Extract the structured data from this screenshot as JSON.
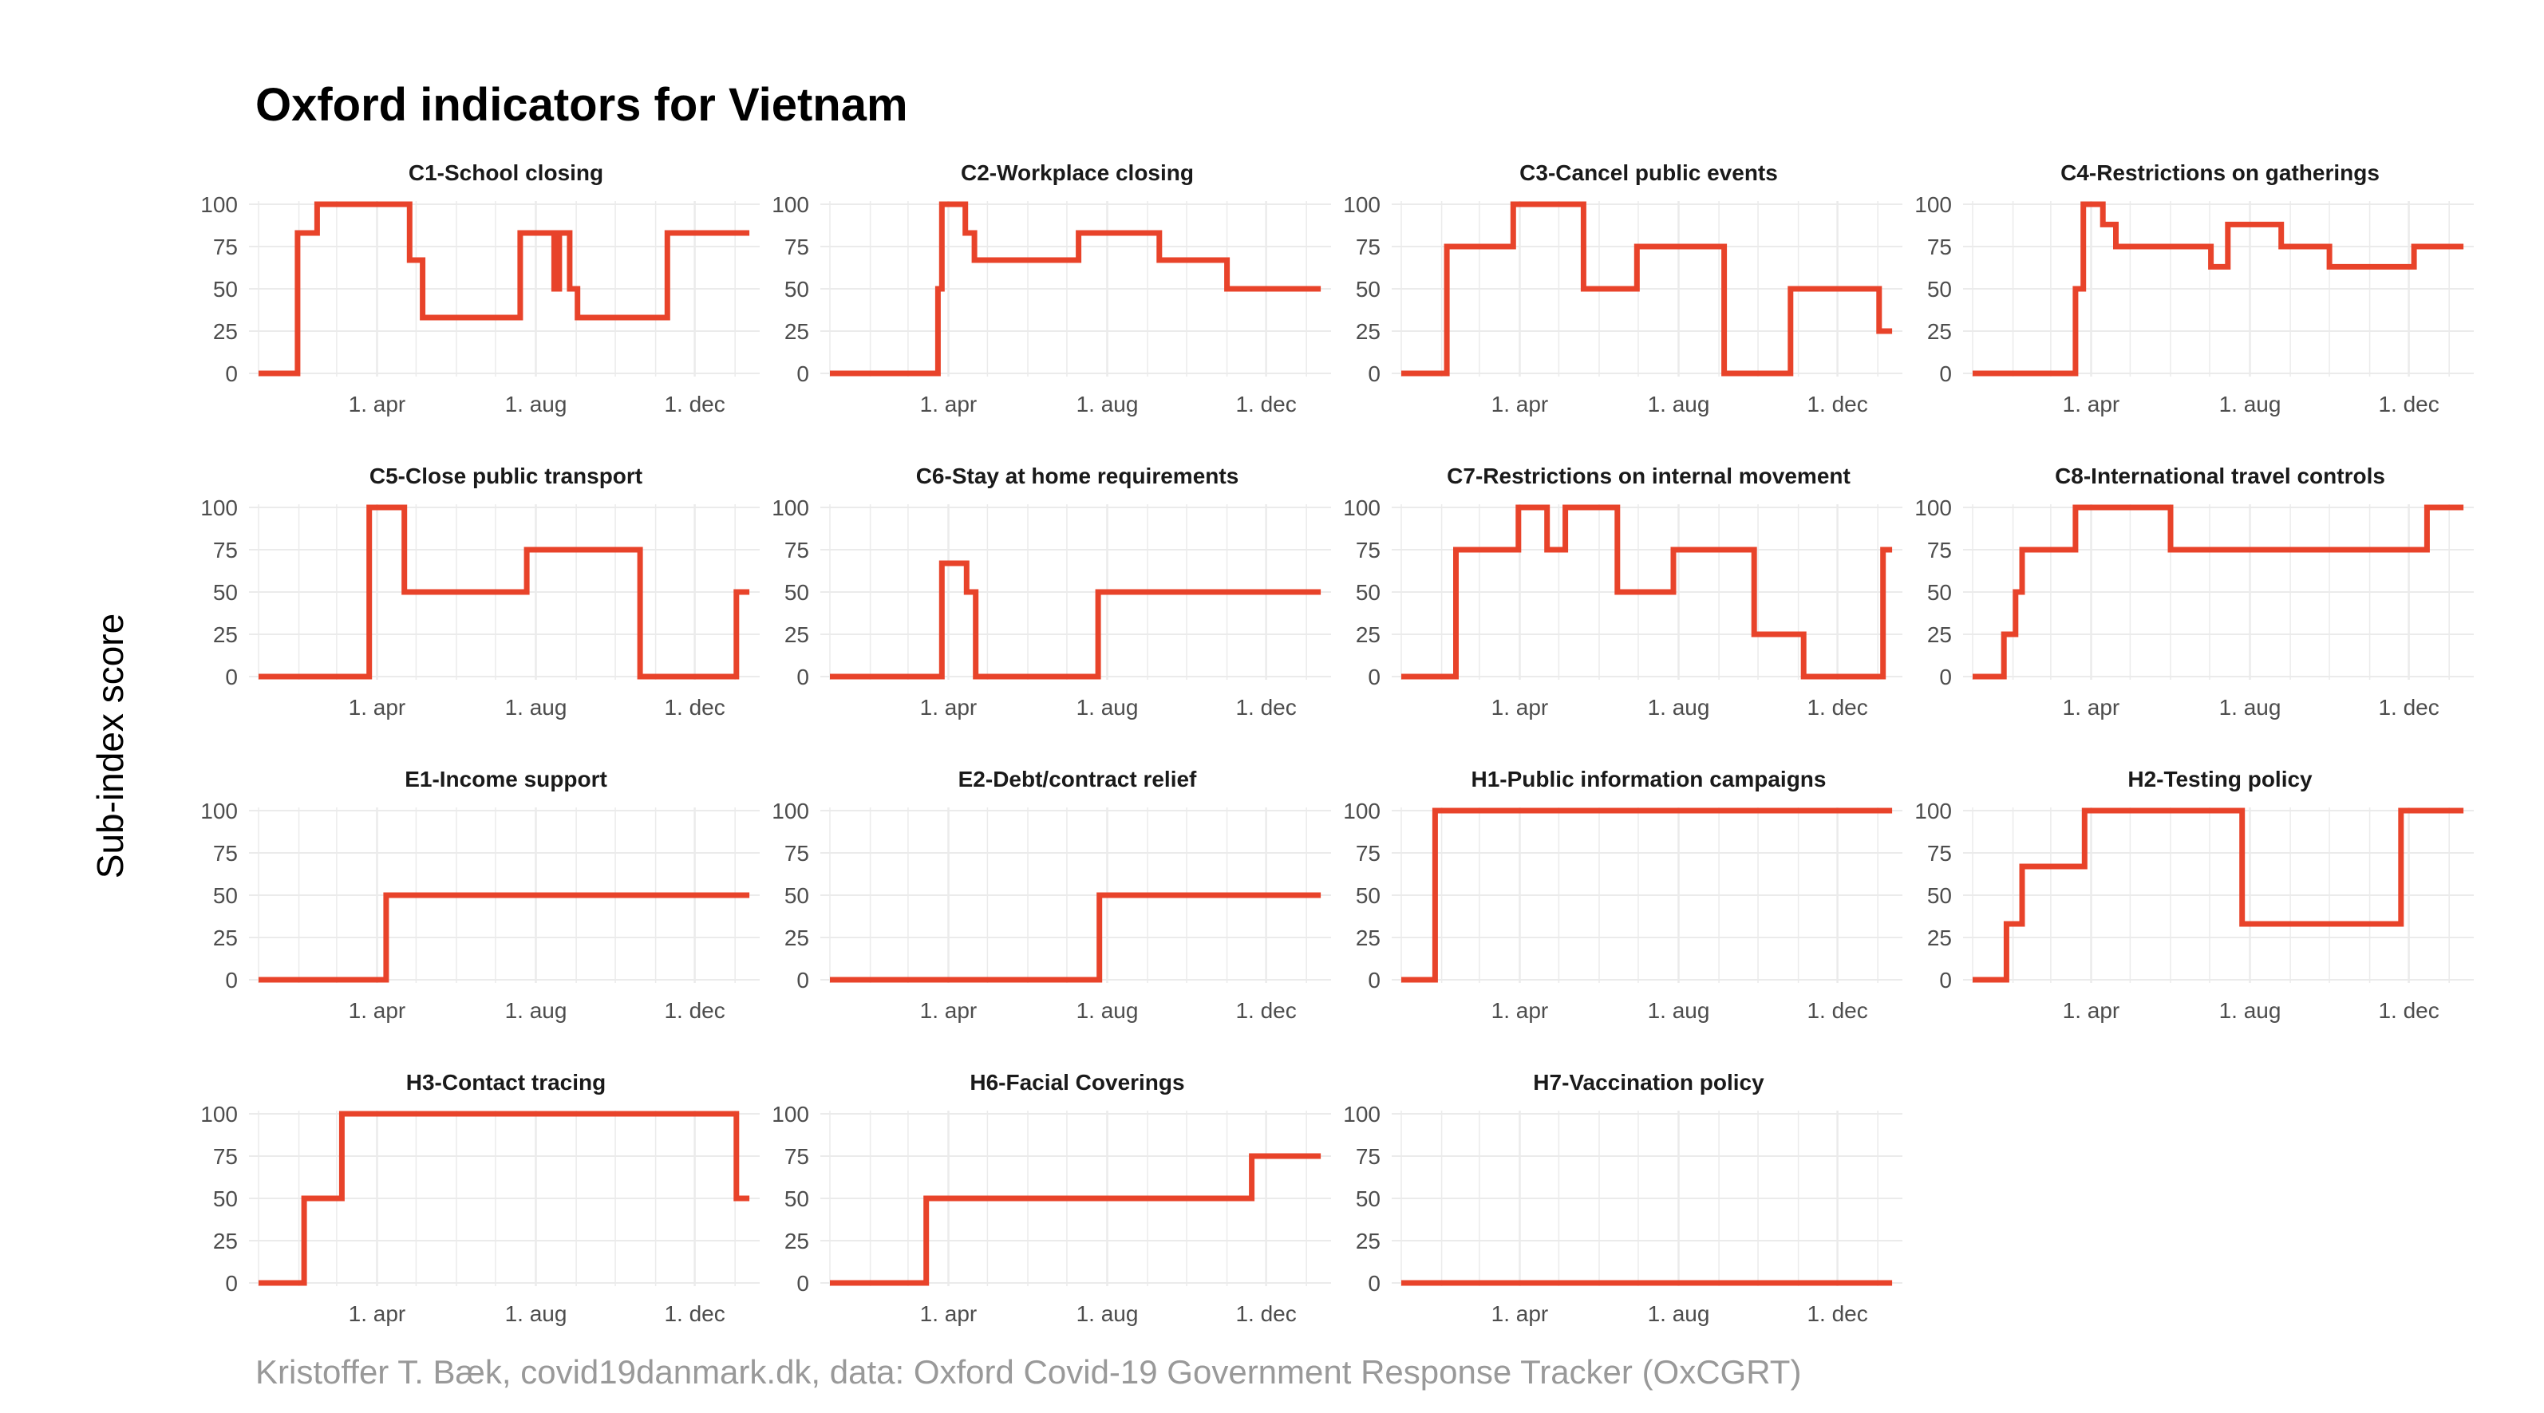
{
  "title": "Oxford indicators for Vietnam",
  "ylabel": "Sub-index score",
  "caption": "Kristoffer T. Bæk, covid19danmark.dk, data: Oxford Covid-19 Government Response Tracker (OxCGRT)",
  "colors": {
    "line": "#e8432a",
    "grid": "#ebebeb",
    "tick_text": "#4d4d4d"
  },
  "chart_data": {
    "type": "line",
    "layout": "facet-grid 4 columns",
    "x_axis": {
      "type": "date",
      "range": [
        "2020-01-01",
        "2021-01-15"
      ],
      "ticks": [
        {
          "date": "2020-04-01",
          "label": "1. apr"
        },
        {
          "date": "2020-08-01",
          "label": "1. aug"
        },
        {
          "date": "2020-12-01",
          "label": "1. dec"
        }
      ]
    },
    "y_axis": {
      "range": [
        0,
        100
      ],
      "ticks": [
        0,
        25,
        50,
        75,
        100
      ]
    },
    "panels": [
      {
        "title": "C1-School closing",
        "points": [
          [
            "2020-01-01",
            0
          ],
          [
            "2020-01-31",
            0
          ],
          [
            "2020-01-31",
            83
          ],
          [
            "2020-02-15",
            83
          ],
          [
            "2020-02-15",
            100
          ],
          [
            "2020-04-26",
            100
          ],
          [
            "2020-04-26",
            67
          ],
          [
            "2020-05-06",
            67
          ],
          [
            "2020-05-06",
            33
          ],
          [
            "2020-07-20",
            33
          ],
          [
            "2020-07-20",
            83
          ],
          [
            "2020-08-15",
            83
          ],
          [
            "2020-08-15",
            50
          ],
          [
            "2020-08-19",
            50
          ],
          [
            "2020-08-19",
            83
          ],
          [
            "2020-08-27",
            83
          ],
          [
            "2020-08-27",
            50
          ],
          [
            "2020-09-02",
            50
          ],
          [
            "2020-09-02",
            33
          ],
          [
            "2020-11-10",
            33
          ],
          [
            "2020-11-10",
            83
          ],
          [
            "2021-01-12",
            83
          ]
        ]
      },
      {
        "title": "C2-Workplace closing",
        "points": [
          [
            "2020-01-01",
            0
          ],
          [
            "2020-03-24",
            0
          ],
          [
            "2020-03-24",
            50
          ],
          [
            "2020-03-27",
            50
          ],
          [
            "2020-03-27",
            100
          ],
          [
            "2020-04-14",
            100
          ],
          [
            "2020-04-14",
            83
          ],
          [
            "2020-04-21",
            83
          ],
          [
            "2020-04-21",
            67
          ],
          [
            "2020-07-10",
            67
          ],
          [
            "2020-07-10",
            83
          ],
          [
            "2020-09-10",
            83
          ],
          [
            "2020-09-10",
            67
          ],
          [
            "2020-11-01",
            67
          ],
          [
            "2020-11-01",
            50
          ],
          [
            "2021-01-12",
            50
          ]
        ]
      },
      {
        "title": "C3-Cancel public events",
        "points": [
          [
            "2020-01-01",
            0
          ],
          [
            "2020-02-05",
            0
          ],
          [
            "2020-02-05",
            75
          ],
          [
            "2020-03-27",
            75
          ],
          [
            "2020-03-27",
            100
          ],
          [
            "2020-05-20",
            100
          ],
          [
            "2020-05-20",
            50
          ],
          [
            "2020-06-30",
            50
          ],
          [
            "2020-06-30",
            75
          ],
          [
            "2020-09-05",
            75
          ],
          [
            "2020-09-05",
            0
          ],
          [
            "2020-10-26",
            0
          ],
          [
            "2020-10-26",
            50
          ],
          [
            "2021-01-02",
            50
          ],
          [
            "2021-01-02",
            25
          ],
          [
            "2021-01-12",
            25
          ]
        ]
      },
      {
        "title": "C4-Restrictions on gatherings",
        "points": [
          [
            "2020-01-01",
            0
          ],
          [
            "2020-03-20",
            0
          ],
          [
            "2020-03-20",
            50
          ],
          [
            "2020-03-26",
            50
          ],
          [
            "2020-03-26",
            100
          ],
          [
            "2020-04-10",
            100
          ],
          [
            "2020-04-10",
            88
          ],
          [
            "2020-04-20",
            88
          ],
          [
            "2020-04-20",
            75
          ],
          [
            "2020-07-02",
            75
          ],
          [
            "2020-07-02",
            63
          ],
          [
            "2020-07-15",
            63
          ],
          [
            "2020-07-15",
            88
          ],
          [
            "2020-08-25",
            88
          ],
          [
            "2020-08-25",
            75
          ],
          [
            "2020-10-01",
            75
          ],
          [
            "2020-10-01",
            63
          ],
          [
            "2020-12-05",
            63
          ],
          [
            "2020-12-05",
            75
          ],
          [
            "2021-01-12",
            75
          ]
        ]
      },
      {
        "title": "C5-Close public transport",
        "points": [
          [
            "2020-01-01",
            0
          ],
          [
            "2020-03-26",
            0
          ],
          [
            "2020-03-26",
            100
          ],
          [
            "2020-04-22",
            100
          ],
          [
            "2020-04-22",
            50
          ],
          [
            "2020-07-25",
            50
          ],
          [
            "2020-07-25",
            75
          ],
          [
            "2020-10-20",
            75
          ],
          [
            "2020-10-20",
            0
          ],
          [
            "2021-01-02",
            0
          ],
          [
            "2021-01-02",
            50
          ],
          [
            "2021-01-12",
            50
          ]
        ]
      },
      {
        "title": "C6-Stay at home requirements",
        "points": [
          [
            "2020-01-01",
            0
          ],
          [
            "2020-03-27",
            0
          ],
          [
            "2020-03-27",
            67
          ],
          [
            "2020-04-15",
            67
          ],
          [
            "2020-04-15",
            50
          ],
          [
            "2020-04-22",
            50
          ],
          [
            "2020-04-22",
            0
          ],
          [
            "2020-07-25",
            0
          ],
          [
            "2020-07-25",
            50
          ],
          [
            "2021-01-12",
            50
          ]
        ]
      },
      {
        "title": "C7-Restrictions on internal movement",
        "points": [
          [
            "2020-01-01",
            0
          ],
          [
            "2020-02-12",
            0
          ],
          [
            "2020-02-12",
            75
          ],
          [
            "2020-03-31",
            75
          ],
          [
            "2020-03-31",
            100
          ],
          [
            "2020-04-22",
            100
          ],
          [
            "2020-04-22",
            75
          ],
          [
            "2020-05-06",
            75
          ],
          [
            "2020-05-06",
            100
          ],
          [
            "2020-06-15",
            100
          ],
          [
            "2020-06-15",
            50
          ],
          [
            "2020-07-28",
            50
          ],
          [
            "2020-07-28",
            75
          ],
          [
            "2020-09-28",
            75
          ],
          [
            "2020-09-28",
            25
          ],
          [
            "2020-11-05",
            25
          ],
          [
            "2020-11-05",
            0
          ],
          [
            "2021-01-05",
            0
          ],
          [
            "2021-01-05",
            75
          ],
          [
            "2021-01-12",
            75
          ]
        ]
      },
      {
        "title": "C8-International travel controls",
        "points": [
          [
            "2020-01-01",
            0
          ],
          [
            "2020-01-25",
            0
          ],
          [
            "2020-01-25",
            25
          ],
          [
            "2020-02-03",
            25
          ],
          [
            "2020-02-03",
            50
          ],
          [
            "2020-02-08",
            50
          ],
          [
            "2020-02-08",
            75
          ],
          [
            "2020-03-20",
            75
          ],
          [
            "2020-03-20",
            100
          ],
          [
            "2020-06-01",
            100
          ],
          [
            "2020-06-01",
            75
          ],
          [
            "2020-12-15",
            75
          ],
          [
            "2020-12-15",
            100
          ],
          [
            "2021-01-12",
            100
          ]
        ]
      },
      {
        "title": "E1-Income support",
        "points": [
          [
            "2020-01-01",
            0
          ],
          [
            "2020-04-08",
            0
          ],
          [
            "2020-04-08",
            50
          ],
          [
            "2021-01-12",
            50
          ]
        ]
      },
      {
        "title": "E2-Debt/contract relief",
        "points": [
          [
            "2020-01-01",
            0
          ],
          [
            "2020-07-26",
            0
          ],
          [
            "2020-07-26",
            50
          ],
          [
            "2021-01-12",
            50
          ]
        ]
      },
      {
        "title": "H1-Public information campaigns",
        "points": [
          [
            "2020-01-01",
            0
          ],
          [
            "2020-01-27",
            0
          ],
          [
            "2020-01-27",
            100
          ],
          [
            "2021-01-12",
            100
          ]
        ]
      },
      {
        "title": "H2-Testing policy",
        "points": [
          [
            "2020-01-01",
            0
          ],
          [
            "2020-01-27",
            0
          ],
          [
            "2020-01-27",
            33
          ],
          [
            "2020-02-08",
            33
          ],
          [
            "2020-02-08",
            67
          ],
          [
            "2020-03-27",
            67
          ],
          [
            "2020-03-27",
            100
          ],
          [
            "2020-07-26",
            100
          ],
          [
            "2020-07-26",
            33
          ],
          [
            "2020-11-25",
            33
          ],
          [
            "2020-11-25",
            100
          ],
          [
            "2021-01-12",
            100
          ]
        ]
      },
      {
        "title": "H3-Contact tracing",
        "points": [
          [
            "2020-01-01",
            0
          ],
          [
            "2020-02-05",
            0
          ],
          [
            "2020-02-05",
            50
          ],
          [
            "2020-03-05",
            50
          ],
          [
            "2020-03-05",
            100
          ],
          [
            "2021-01-02",
            100
          ],
          [
            "2021-01-02",
            50
          ],
          [
            "2021-01-12",
            50
          ]
        ]
      },
      {
        "title": "H6-Facial Coverings",
        "points": [
          [
            "2020-01-01",
            0
          ],
          [
            "2020-03-15",
            0
          ],
          [
            "2020-03-15",
            50
          ],
          [
            "2020-11-20",
            50
          ],
          [
            "2020-11-20",
            75
          ],
          [
            "2021-01-12",
            75
          ]
        ]
      },
      {
        "title": "H7-Vaccination policy",
        "points": [
          [
            "2020-01-01",
            0
          ],
          [
            "2021-01-12",
            0
          ]
        ]
      }
    ]
  }
}
